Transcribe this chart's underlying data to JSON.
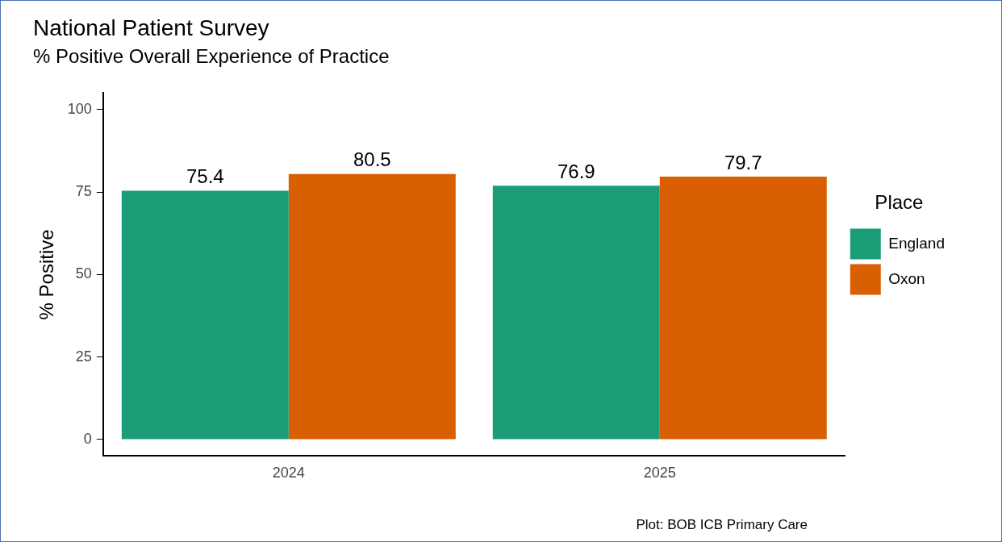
{
  "chart_data": {
    "type": "bar",
    "title": "National Patient Survey",
    "subtitle": "% Positive Overall Experience of Practice",
    "ylabel": "% Positive",
    "legend_title": "Place",
    "categories": [
      "2024",
      "2025"
    ],
    "series": [
      {
        "name": "England",
        "color": "#1b9e77",
        "values": [
          75.4,
          76.9
        ]
      },
      {
        "name": "Oxon",
        "color": "#d95f02",
        "values": [
          80.5,
          79.7
        ]
      }
    ],
    "ylim": [
      -5,
      105
    ],
    "yticks": [
      0,
      25,
      50,
      75,
      100
    ],
    "grid": false,
    "legend": "right",
    "data_labels": true,
    "annotations": [
      "Plot: BOB ICB Primary Care"
    ]
  }
}
